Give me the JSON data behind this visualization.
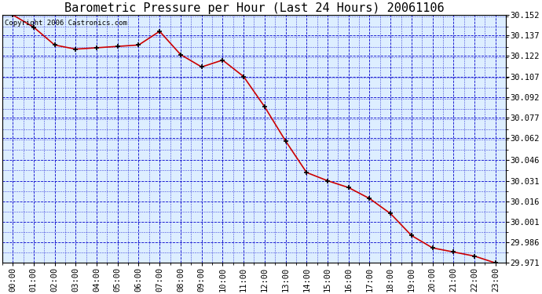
{
  "title": "Barometric Pressure per Hour (Last 24 Hours) 20061106",
  "copyright_text": "Copyright 2006 Castronics.com",
  "x_labels": [
    "00:00",
    "01:00",
    "02:00",
    "03:00",
    "04:00",
    "05:00",
    "06:00",
    "07:00",
    "08:00",
    "09:00",
    "10:00",
    "11:00",
    "12:00",
    "13:00",
    "14:00",
    "15:00",
    "16:00",
    "17:00",
    "18:00",
    "19:00",
    "20:00",
    "21:00",
    "22:00",
    "23:00"
  ],
  "y_values": [
    30.152,
    30.143,
    30.13,
    30.127,
    30.128,
    30.129,
    30.13,
    30.14,
    30.123,
    30.114,
    30.119,
    30.107,
    30.085,
    30.06,
    30.037,
    30.031,
    30.026,
    30.018,
    30.007,
    29.991,
    29.982,
    29.979,
    29.976,
    29.971
  ],
  "line_color": "#cc0000",
  "marker": "+",
  "marker_color": "#000000",
  "bg_color": "#ffffff",
  "plot_bg_color": "#ddeeff",
  "grid_color": "#0000cc",
  "title_color": "#000000",
  "ylim_min": 29.971,
  "ylim_max": 30.152,
  "ytick_values": [
    30.152,
    30.137,
    30.122,
    30.107,
    30.092,
    30.077,
    30.062,
    30.046,
    30.031,
    30.016,
    30.001,
    29.986,
    29.971
  ],
  "title_fontsize": 11,
  "copyright_fontsize": 6.5,
  "tick_fontsize": 7.5,
  "figwidth": 6.9,
  "figheight": 3.75,
  "dpi": 100
}
